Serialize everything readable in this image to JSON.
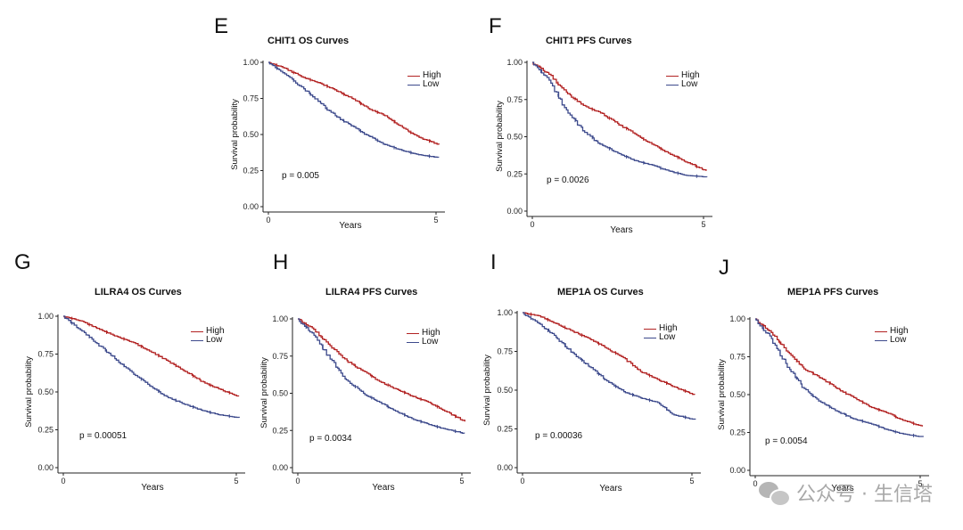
{
  "watermark": {
    "text": "公众号 · 生信塔",
    "icon": "wechat-icon"
  },
  "colors": {
    "high": "#b22222",
    "low": "#3d4a8c",
    "axis": "#222222"
  },
  "chart_data": [
    {
      "panel": "E",
      "type": "line",
      "title": "CHIT1 OS Curves",
      "xlabel": "Years",
      "ylabel": "Survival probability",
      "xlim": [
        0,
        5
      ],
      "ylim": [
        0,
        1
      ],
      "xticks": [
        "0",
        "5"
      ],
      "yticks": [
        "0.00",
        "0.25",
        "0.50",
        "0.75",
        "1.00"
      ],
      "pvalue": "p = 0.005",
      "legend": [
        "High",
        "Low"
      ],
      "legend_position": "top-right",
      "series": [
        {
          "name": "High",
          "x": [
            0,
            0.5,
            1,
            1.5,
            2,
            2.5,
            3,
            3.5,
            4,
            4.5,
            5.1
          ],
          "y": [
            1.0,
            0.96,
            0.9,
            0.86,
            0.81,
            0.75,
            0.68,
            0.63,
            0.55,
            0.48,
            0.43
          ]
        },
        {
          "name": "Low",
          "x": [
            0,
            0.5,
            1,
            1.5,
            2,
            2.5,
            3,
            3.5,
            4,
            4.5,
            5.1
          ],
          "y": [
            1.0,
            0.92,
            0.83,
            0.73,
            0.63,
            0.56,
            0.49,
            0.43,
            0.39,
            0.36,
            0.34
          ]
        }
      ]
    },
    {
      "panel": "F",
      "type": "line",
      "title": "CHIT1 PFS Curves",
      "xlabel": "Years",
      "ylabel": "Survival probability",
      "xlim": [
        0,
        5
      ],
      "ylim": [
        0,
        1
      ],
      "xticks": [
        "0",
        "5"
      ],
      "yticks": [
        "0.00",
        "0.25",
        "0.50",
        "0.75",
        "1.00"
      ],
      "pvalue": "p = 0.0026",
      "legend": [
        "High",
        "Low"
      ],
      "legend_position": "top-right",
      "series": [
        {
          "name": "High",
          "x": [
            0,
            0.5,
            1,
            1.5,
            2,
            2.5,
            3,
            3.5,
            4,
            4.5,
            5.1
          ],
          "y": [
            1.0,
            0.92,
            0.8,
            0.71,
            0.66,
            0.59,
            0.52,
            0.45,
            0.39,
            0.33,
            0.27
          ]
        },
        {
          "name": "Low",
          "x": [
            0,
            0.5,
            1,
            1.5,
            2,
            2.5,
            3,
            3.5,
            4,
            4.5,
            5.1
          ],
          "y": [
            1.0,
            0.88,
            0.68,
            0.54,
            0.45,
            0.39,
            0.34,
            0.31,
            0.27,
            0.24,
            0.23
          ]
        }
      ]
    },
    {
      "panel": "G",
      "type": "line",
      "title": "LILRA4 OS Curves",
      "xlabel": "Years",
      "ylabel": "Survival probability",
      "xlim": [
        0,
        5
      ],
      "ylim": [
        0,
        1
      ],
      "xticks": [
        "0",
        "5"
      ],
      "yticks": [
        "0.00",
        "0.25",
        "0.50",
        "0.75",
        "1.00"
      ],
      "pvalue": "p = 0.00051",
      "legend": [
        "High",
        "Low"
      ],
      "legend_position": "top-right",
      "series": [
        {
          "name": "High",
          "x": [
            0,
            0.5,
            1,
            1.5,
            2,
            2.5,
            3,
            3.5,
            4,
            4.5,
            5.1
          ],
          "y": [
            1.0,
            0.97,
            0.92,
            0.87,
            0.83,
            0.77,
            0.71,
            0.64,
            0.57,
            0.52,
            0.47
          ]
        },
        {
          "name": "Low",
          "x": [
            0,
            0.5,
            1,
            1.5,
            2,
            2.5,
            3,
            3.5,
            4,
            4.5,
            5.1
          ],
          "y": [
            1.0,
            0.91,
            0.82,
            0.72,
            0.63,
            0.54,
            0.47,
            0.42,
            0.38,
            0.35,
            0.33
          ]
        }
      ]
    },
    {
      "panel": "H",
      "type": "line",
      "title": "LILRA4 PFS Curves",
      "xlabel": "Years",
      "ylabel": "Survival probability",
      "xlim": [
        0,
        5
      ],
      "ylim": [
        0,
        1
      ],
      "xticks": [
        "0",
        "5"
      ],
      "yticks": [
        "0.00",
        "0.25",
        "0.50",
        "0.75",
        "1.00"
      ],
      "pvalue": "p = 0.0034",
      "legend": [
        "High",
        "Low"
      ],
      "legend_position": "top-right",
      "series": [
        {
          "name": "High",
          "x": [
            0,
            0.5,
            1,
            1.5,
            2,
            2.5,
            3,
            3.5,
            4,
            4.5,
            5.1
          ],
          "y": [
            1.0,
            0.93,
            0.82,
            0.72,
            0.65,
            0.58,
            0.53,
            0.48,
            0.44,
            0.38,
            0.31
          ]
        },
        {
          "name": "Low",
          "x": [
            0,
            0.5,
            1,
            1.5,
            2,
            2.5,
            3,
            3.5,
            4,
            4.5,
            5.1
          ],
          "y": [
            1.0,
            0.89,
            0.73,
            0.59,
            0.5,
            0.44,
            0.38,
            0.33,
            0.29,
            0.26,
            0.23
          ]
        }
      ]
    },
    {
      "panel": "I",
      "type": "line",
      "title": "MEP1A OS Curves",
      "xlabel": "Years",
      "ylabel": "Survival probability",
      "xlim": [
        0,
        5
      ],
      "ylim": [
        0,
        1
      ],
      "xticks": [
        "0",
        "5"
      ],
      "yticks": [
        "0.00",
        "0.25",
        "0.50",
        "0.75",
        "1.00"
      ],
      "pvalue": "p = 0.00036",
      "legend": [
        "High",
        "Low"
      ],
      "legend_position": "top-right",
      "series": [
        {
          "name": "High",
          "x": [
            0,
            0.5,
            1,
            1.5,
            2,
            2.5,
            3,
            3.5,
            4,
            4.5,
            5.1
          ],
          "y": [
            1.0,
            0.98,
            0.93,
            0.88,
            0.83,
            0.77,
            0.71,
            0.62,
            0.57,
            0.52,
            0.47
          ]
        },
        {
          "name": "Low",
          "x": [
            0,
            0.5,
            1,
            1.5,
            2,
            2.5,
            3,
            3.5,
            4,
            4.5,
            5.1
          ],
          "y": [
            1.0,
            0.93,
            0.84,
            0.74,
            0.65,
            0.56,
            0.49,
            0.45,
            0.42,
            0.34,
            0.31
          ]
        }
      ]
    },
    {
      "panel": "J",
      "type": "line",
      "title": "MEP1A PFS Curves",
      "xlabel": "Years",
      "ylabel": "Survival probability",
      "xlim": [
        0,
        5
      ],
      "ylim": [
        0,
        1
      ],
      "xticks": [
        "0",
        "5"
      ],
      "yticks": [
        "0.00",
        "0.25",
        "0.50",
        "0.75",
        "1.00"
      ],
      "pvalue": "p = 0.0054",
      "legend": [
        "High",
        "Low"
      ],
      "legend_position": "top-right",
      "series": [
        {
          "name": "High",
          "x": [
            0,
            0.5,
            1,
            1.5,
            2,
            2.5,
            3,
            3.5,
            4,
            4.5,
            5.1
          ],
          "y": [
            1.0,
            0.91,
            0.78,
            0.67,
            0.61,
            0.54,
            0.48,
            0.42,
            0.38,
            0.33,
            0.29
          ]
        },
        {
          "name": "Low",
          "x": [
            0,
            0.5,
            1,
            1.5,
            2,
            2.5,
            3,
            3.5,
            4,
            4.5,
            5.1
          ],
          "y": [
            1.0,
            0.87,
            0.68,
            0.54,
            0.45,
            0.39,
            0.34,
            0.31,
            0.27,
            0.24,
            0.22
          ]
        }
      ]
    }
  ]
}
